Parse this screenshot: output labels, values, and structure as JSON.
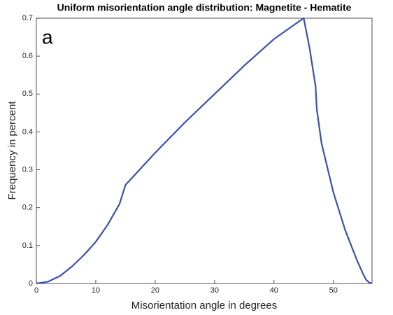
{
  "chart_data": {
    "type": "line",
    "title": "Uniform misorientation angle distribution: Magnetite - Hematite",
    "panel_label": "a",
    "xlabel": "Misorientation angle in degrees",
    "ylabel": "Frequency in percent",
    "x": [
      0,
      2,
      4,
      6,
      8,
      10,
      12,
      14,
      15,
      20,
      25,
      30,
      35,
      40,
      45,
      46,
      47,
      47.2,
      48,
      50,
      52,
      54,
      55,
      55.5,
      56,
      56.5
    ],
    "values": [
      0,
      0.005,
      0.02,
      0.045,
      0.075,
      0.11,
      0.155,
      0.21,
      0.26,
      0.345,
      0.425,
      0.5,
      0.575,
      0.645,
      0.7,
      0.62,
      0.52,
      0.46,
      0.37,
      0.24,
      0.14,
      0.06,
      0.025,
      0.01,
      0.003,
      0
    ],
    "color": "#3c4fb0",
    "xlim": [
      0,
      56.5
    ],
    "xticks": [
      0,
      10,
      20,
      30,
      40,
      50
    ],
    "ylim": [
      0,
      0.7
    ],
    "yticks": [
      0,
      0.1,
      0.2,
      0.3,
      0.4,
      0.5,
      0.6,
      0.7
    ],
    "grid": false
  }
}
